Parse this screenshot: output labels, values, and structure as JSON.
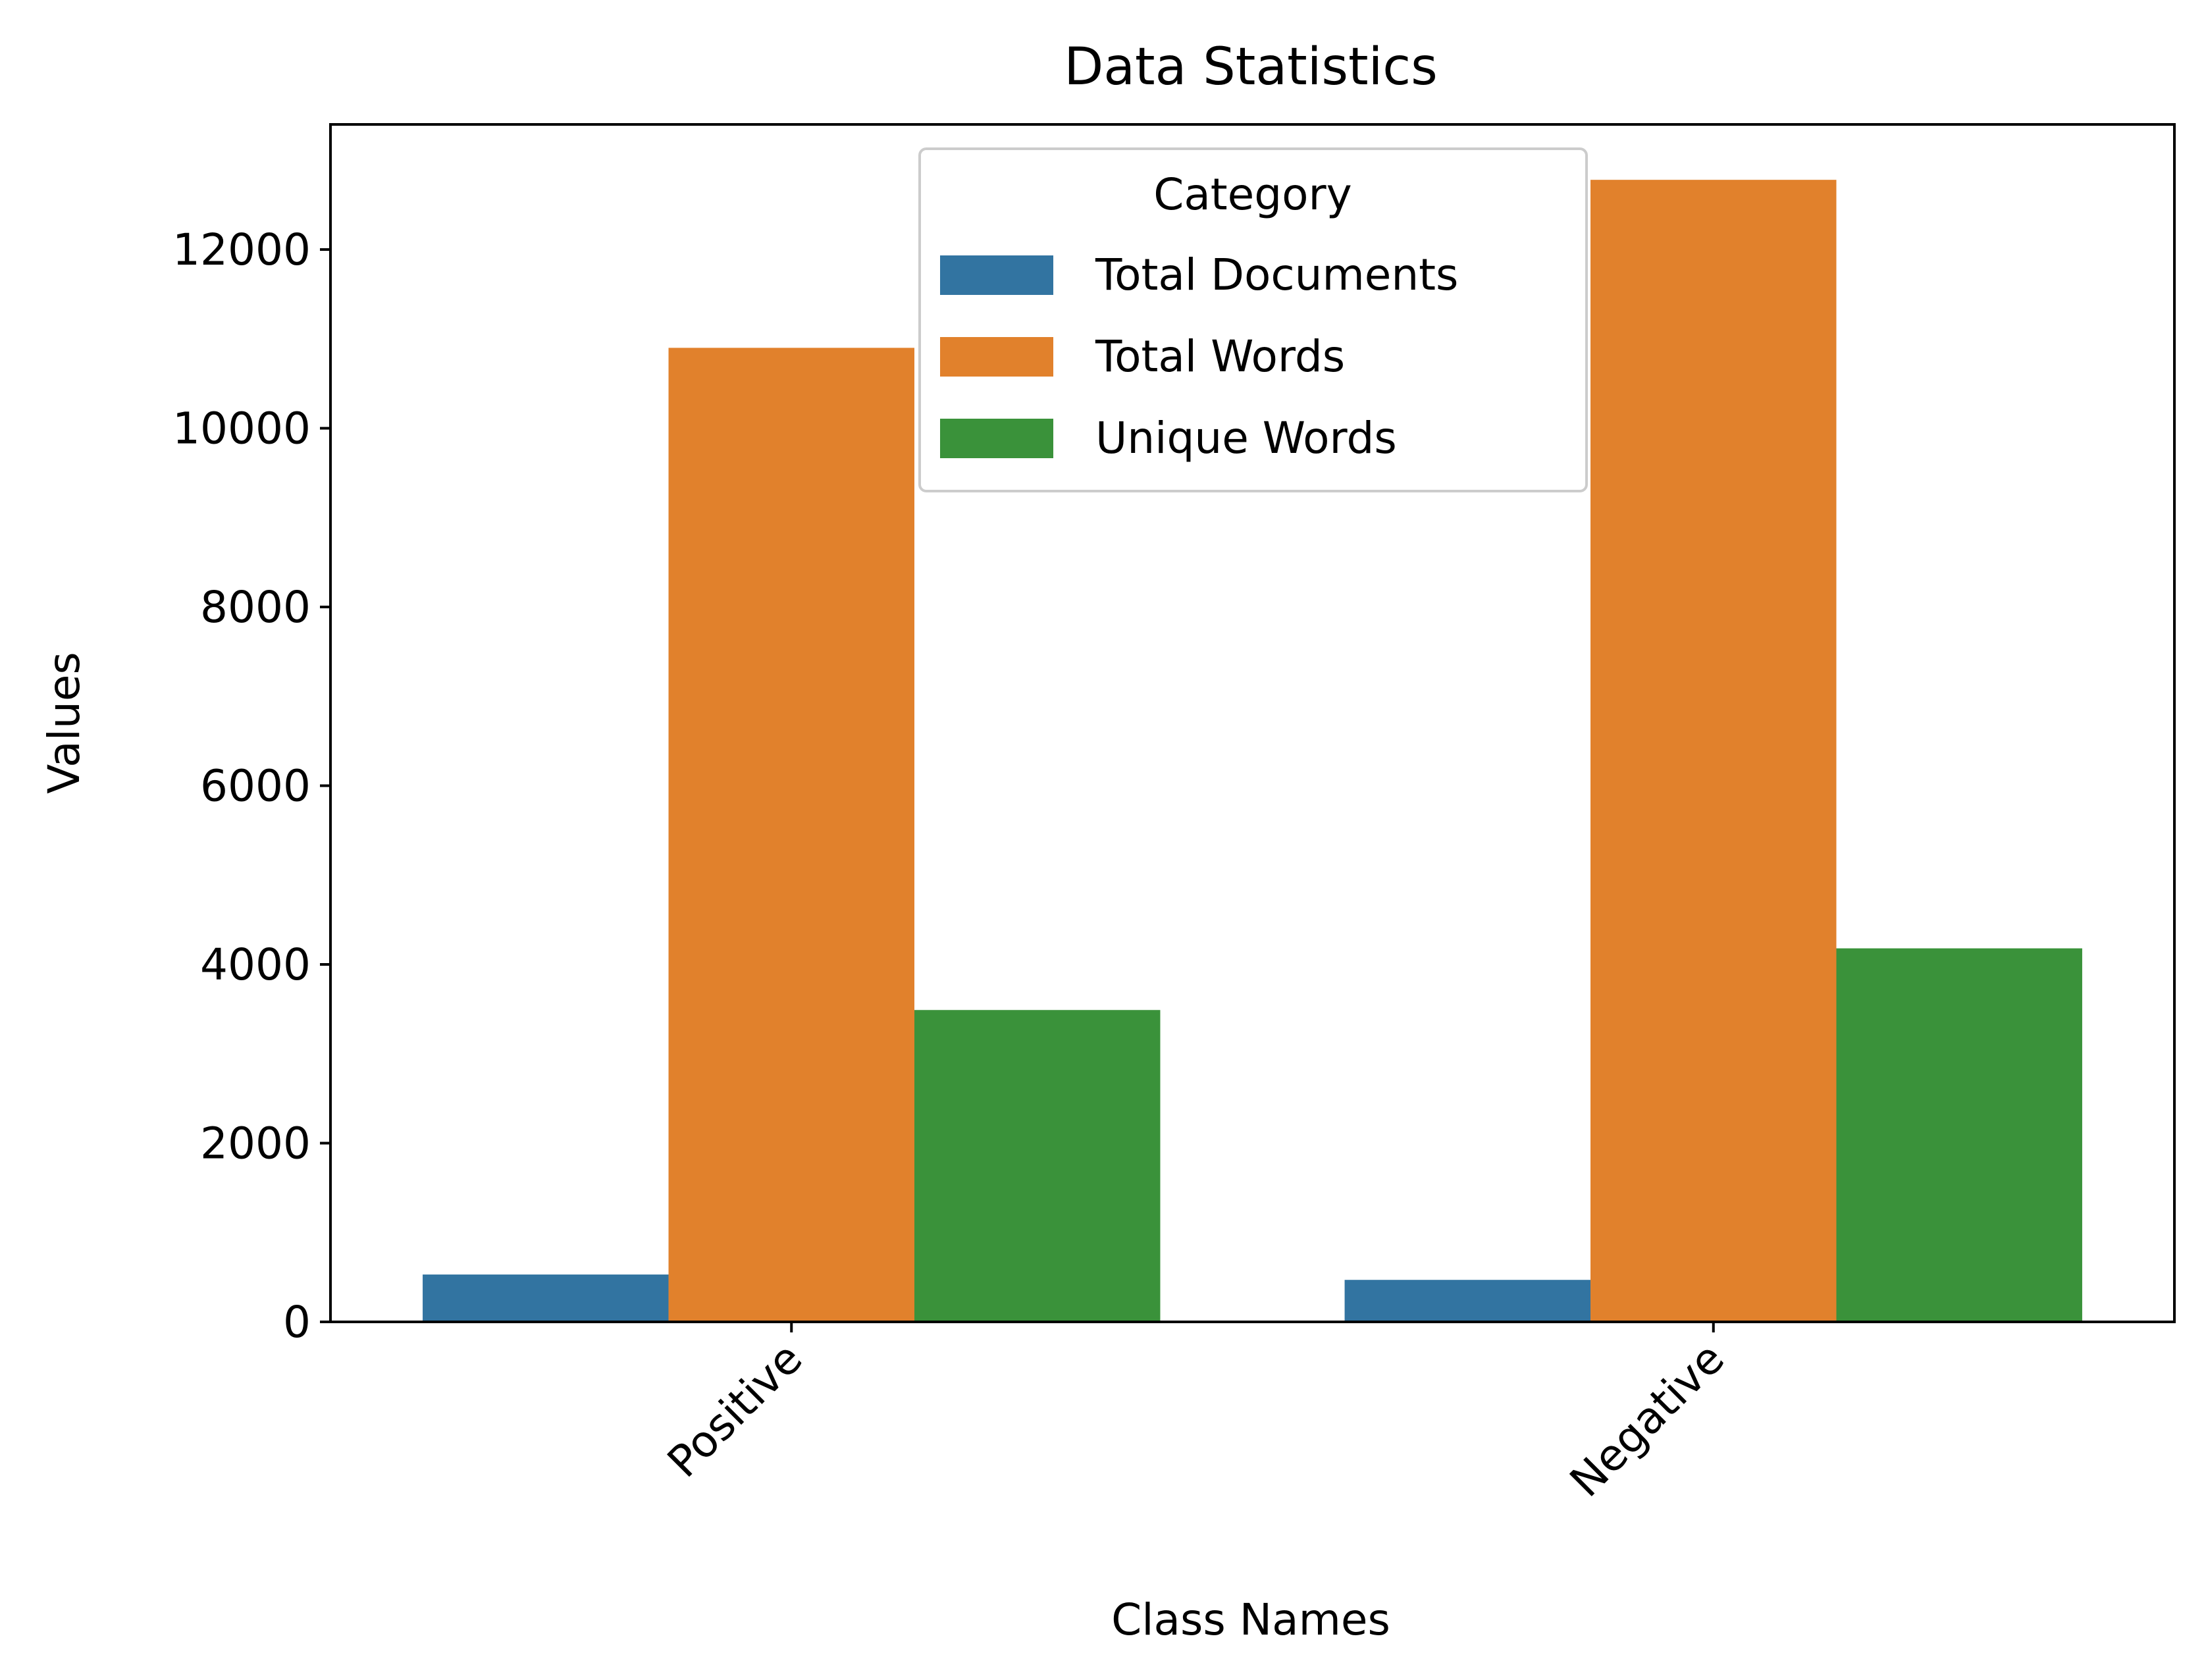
{
  "chart_data": {
    "type": "bar",
    "title": "Data Statistics",
    "xlabel": "Class Names",
    "ylabel": "Values",
    "categories": [
      "Positive",
      "Negative"
    ],
    "series": [
      {
        "name": "Total Documents",
        "color": "#3274a1",
        "values": [
          530,
          470
        ]
      },
      {
        "name": "Total Words",
        "color": "#e1812c",
        "values": [
          10900,
          12780
        ]
      },
      {
        "name": "Unique Words",
        "color": "#3a923a",
        "values": [
          3490,
          4180
        ]
      }
    ],
    "ylim": [
      0,
      13400
    ],
    "yticks": [
      0,
      2000,
      4000,
      6000,
      8000,
      10000,
      12000
    ],
    "legend": {
      "title": "Category",
      "placement": "upper-center"
    },
    "grid": false
  }
}
